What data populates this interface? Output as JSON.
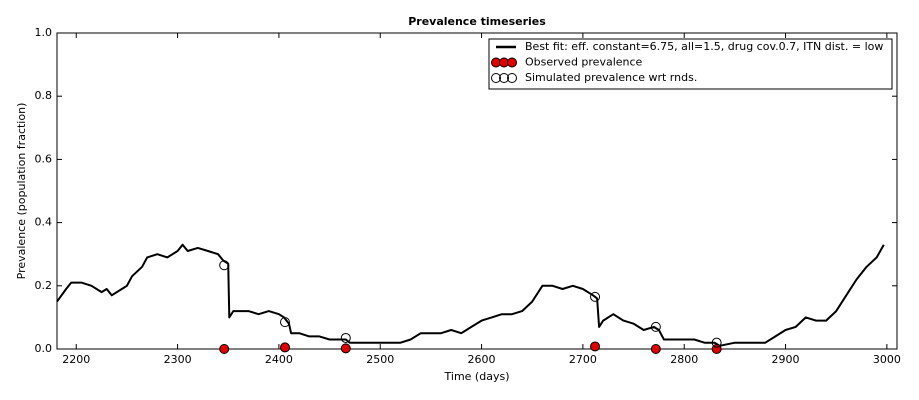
{
  "chart_data": {
    "type": "line",
    "title": "Prevalence timeseries",
    "xlabel": "Time (days)",
    "ylabel": "Prevalence (population fraction)",
    "xlim": [
      2181,
      3010
    ],
    "ylim": [
      0,
      1
    ],
    "xticks": [
      2200,
      2300,
      2400,
      2500,
      2600,
      2700,
      2800,
      2900,
      3000
    ],
    "yticks": [
      {
        "value": 0,
        "label": "0.0"
      },
      {
        "value": 0.2,
        "label": "0.2"
      },
      {
        "value": 0.4,
        "label": "0.4"
      },
      {
        "value": 0.6,
        "label": "0.6"
      },
      {
        "value": 0.8,
        "label": "0.8"
      },
      {
        "value": 1,
        "label": "1.0"
      }
    ],
    "legend": "upper right",
    "series": [
      {
        "name": "Best fit: eff. constant=6.75, all=1.5, drug cov.0.7, ITN dist. = low",
        "type": "line",
        "color": "#000000",
        "x": [
          2181,
          2190,
          2195,
          2205,
          2215,
          2225,
          2230,
          2235,
          2245,
          2250,
          2255,
          2265,
          2270,
          2280,
          2290,
          2300,
          2305,
          2310,
          2320,
          2330,
          2340,
          2345,
          2350,
          2351,
          2355,
          2370,
          2380,
          2390,
          2400,
          2405,
          2410,
          2412,
          2420,
          2430,
          2440,
          2450,
          2460,
          2466,
          2470,
          2480,
          2490,
          2500,
          2510,
          2520,
          2530,
          2540,
          2550,
          2560,
          2570,
          2580,
          2590,
          2600,
          2610,
          2620,
          2630,
          2640,
          2650,
          2660,
          2670,
          2680,
          2690,
          2700,
          2710,
          2714,
          2716,
          2720,
          2730,
          2740,
          2750,
          2760,
          2770,
          2775,
          2780,
          2790,
          2800,
          2810,
          2820,
          2830,
          2835,
          2850,
          2860,
          2870,
          2880,
          2890,
          2900,
          2910,
          2920,
          2930,
          2940,
          2950,
          2960,
          2970,
          2980,
          2990,
          2997
        ],
        "values": [
          0.15,
          0.19,
          0.21,
          0.21,
          0.2,
          0.18,
          0.19,
          0.17,
          0.19,
          0.2,
          0.23,
          0.26,
          0.29,
          0.3,
          0.29,
          0.31,
          0.33,
          0.31,
          0.32,
          0.31,
          0.3,
          0.28,
          0.27,
          0.1,
          0.12,
          0.12,
          0.11,
          0.12,
          0.11,
          0.1,
          0.08,
          0.05,
          0.05,
          0.04,
          0.04,
          0.03,
          0.03,
          0.03,
          0.02,
          0.02,
          0.02,
          0.02,
          0.02,
          0.02,
          0.03,
          0.05,
          0.05,
          0.05,
          0.06,
          0.05,
          0.07,
          0.09,
          0.1,
          0.11,
          0.11,
          0.12,
          0.15,
          0.2,
          0.2,
          0.19,
          0.2,
          0.19,
          0.17,
          0.16,
          0.07,
          0.09,
          0.11,
          0.09,
          0.08,
          0.06,
          0.07,
          0.06,
          0.03,
          0.03,
          0.03,
          0.03,
          0.02,
          0.02,
          0.01,
          0.02,
          0.02,
          0.02,
          0.02,
          0.04,
          0.06,
          0.07,
          0.1,
          0.09,
          0.09,
          0.12,
          0.17,
          0.22,
          0.26,
          0.29,
          0.33
        ]
      },
      {
        "name": "Observed prevalence",
        "type": "scatter",
        "color": "#e00000",
        "filled": true,
        "x": [
          2346,
          2406,
          2466,
          2712,
          2772,
          2832
        ],
        "values": [
          0,
          0.005,
          0.002,
          0.008,
          0,
          0
        ]
      },
      {
        "name": "Simulated prevalence wrt rnds.",
        "type": "scatter",
        "color": "#000000",
        "filled": false,
        "x": [
          2346,
          2406,
          2466,
          2712,
          2772,
          2832
        ],
        "values": [
          0.265,
          0.085,
          0.035,
          0.165,
          0.07,
          0.02
        ]
      }
    ]
  }
}
